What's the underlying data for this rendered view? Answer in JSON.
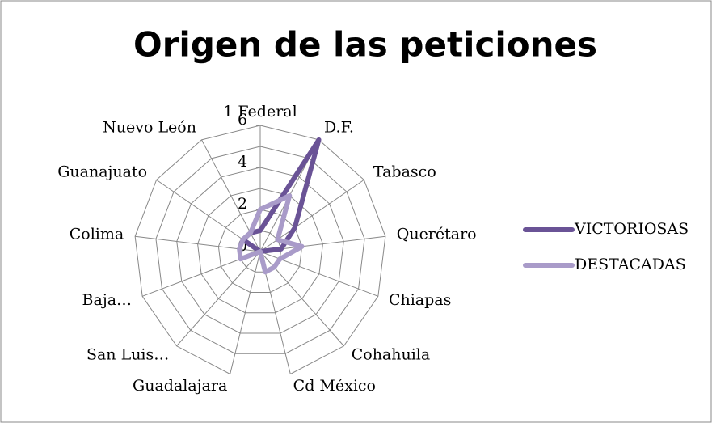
{
  "chart_data": {
    "type": "radar",
    "title": "Origen de las peticiones",
    "categories": [
      "1 Federal",
      "D.F.",
      "Tabasco",
      "Querétaro",
      "Chiapas",
      "Cohahuila",
      "Cd México",
      "Guadalajara",
      "San Luis…",
      "Baja…",
      "Colima",
      "Guanajuato",
      "Nuevo León"
    ],
    "series": [
      {
        "name": "VICTORIOSAS",
        "color": "#6a5396",
        "values": [
          1,
          6,
          2,
          1,
          0,
          0,
          0,
          0,
          0,
          0,
          0,
          1,
          1
        ]
      },
      {
        "name": "DESTACADAS",
        "color": "#a99bc9",
        "values": [
          2,
          3,
          1,
          2,
          1,
          1,
          1,
          0,
          0,
          1,
          1,
          1,
          1
        ]
      }
    ],
    "ylim": [
      0,
      6
    ],
    "yticks": [
      0,
      2,
      4,
      6
    ],
    "grid": true,
    "legend": "right"
  }
}
